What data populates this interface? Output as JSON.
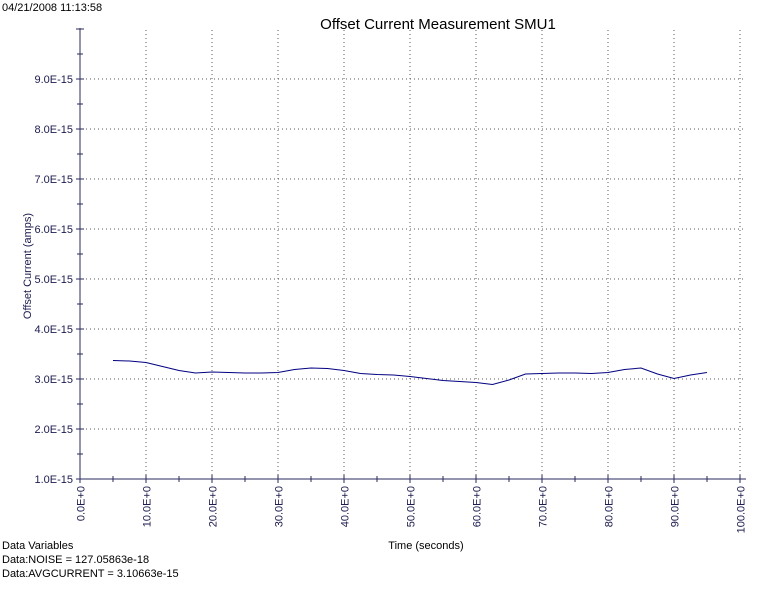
{
  "window": {
    "timestamp": "04/21/2008 11:13:58"
  },
  "footer": {
    "heading": "Data Variables",
    "lines": [
      "Data:NOISE = 127.05863e-18",
      "Data:AVGCURRENT = 3.10663e-15"
    ]
  },
  "colors": {
    "background": "#ffffff",
    "text": "#000000",
    "axis": "#29295e",
    "axis_text": "#1c1c4e",
    "grid_dots": "#5a5a5a",
    "line": "#000080"
  },
  "chart_data": {
    "type": "line",
    "title": "Offset Current Measurement SMU1",
    "xlabel": "Time (seconds)",
    "ylabel": "Offset Current (amps)",
    "xlim": [
      0,
      100
    ],
    "ylim": [
      1e-15,
      1e-14
    ],
    "x_minor_step": 5,
    "y_minor_step": 5e-16,
    "grid": "dotted gridlines at major ticks, no top/right border",
    "legend": "none",
    "x_ticks": [
      {
        "value": 0,
        "label": "0.0E+0"
      },
      {
        "value": 10,
        "label": "10.0E+0"
      },
      {
        "value": 20,
        "label": "20.0E+0"
      },
      {
        "value": 30,
        "label": "30.0E+0"
      },
      {
        "value": 40,
        "label": "40.0E+0"
      },
      {
        "value": 50,
        "label": "50.0E+0"
      },
      {
        "value": 60,
        "label": "60.0E+0"
      },
      {
        "value": 70,
        "label": "70.0E+0"
      },
      {
        "value": 80,
        "label": "80.0E+0"
      },
      {
        "value": 90,
        "label": "90.0E+0"
      },
      {
        "value": 100,
        "label": "100.0E+0"
      }
    ],
    "y_ticks": [
      {
        "value": 1e-15,
        "label": "1.0E-15"
      },
      {
        "value": 2e-15,
        "label": "2.0E-15"
      },
      {
        "value": 3e-15,
        "label": "3.0E-15"
      },
      {
        "value": 4e-15,
        "label": "4.0E-15"
      },
      {
        "value": 5e-15,
        "label": "5.0E-15"
      },
      {
        "value": 6e-15,
        "label": "6.0E-15"
      },
      {
        "value": 7e-15,
        "label": "7.0E-15"
      },
      {
        "value": 8e-15,
        "label": "8.0E-15"
      },
      {
        "value": 9e-15,
        "label": "9.0E-15"
      },
      {
        "value": 1e-14,
        "label": ""
      }
    ],
    "series": [
      {
        "name": "offset-current",
        "color": "#000080",
        "x": [
          5,
          7.5,
          10,
          12.5,
          15,
          17.5,
          20,
          22.5,
          25,
          27.5,
          30,
          32.5,
          35,
          37.5,
          40,
          42.5,
          45,
          47.5,
          50,
          52.5,
          55,
          57.5,
          60,
          62.5,
          65,
          67.5,
          70,
          72.5,
          75,
          77.5,
          80,
          82.5,
          85,
          87.5,
          90,
          92.5,
          95
        ],
        "y": [
          3.37e-15,
          3.36e-15,
          3.33e-15,
          3.25e-15,
          3.17e-15,
          3.12e-15,
          3.14e-15,
          3.13e-15,
          3.12e-15,
          3.12e-15,
          3.13e-15,
          3.19e-15,
          3.22e-15,
          3.21e-15,
          3.17e-15,
          3.11e-15,
          3.09e-15,
          3.08e-15,
          3.05e-15,
          3.01e-15,
          2.97e-15,
          2.95e-15,
          2.93e-15,
          2.89e-15,
          2.98e-15,
          3.1e-15,
          3.11e-15,
          3.12e-15,
          3.12e-15,
          3.11e-15,
          3.13e-15,
          3.19e-15,
          3.22e-15,
          3.1e-15,
          3.01e-15,
          3.08e-15,
          3.13e-15
        ]
      }
    ]
  }
}
